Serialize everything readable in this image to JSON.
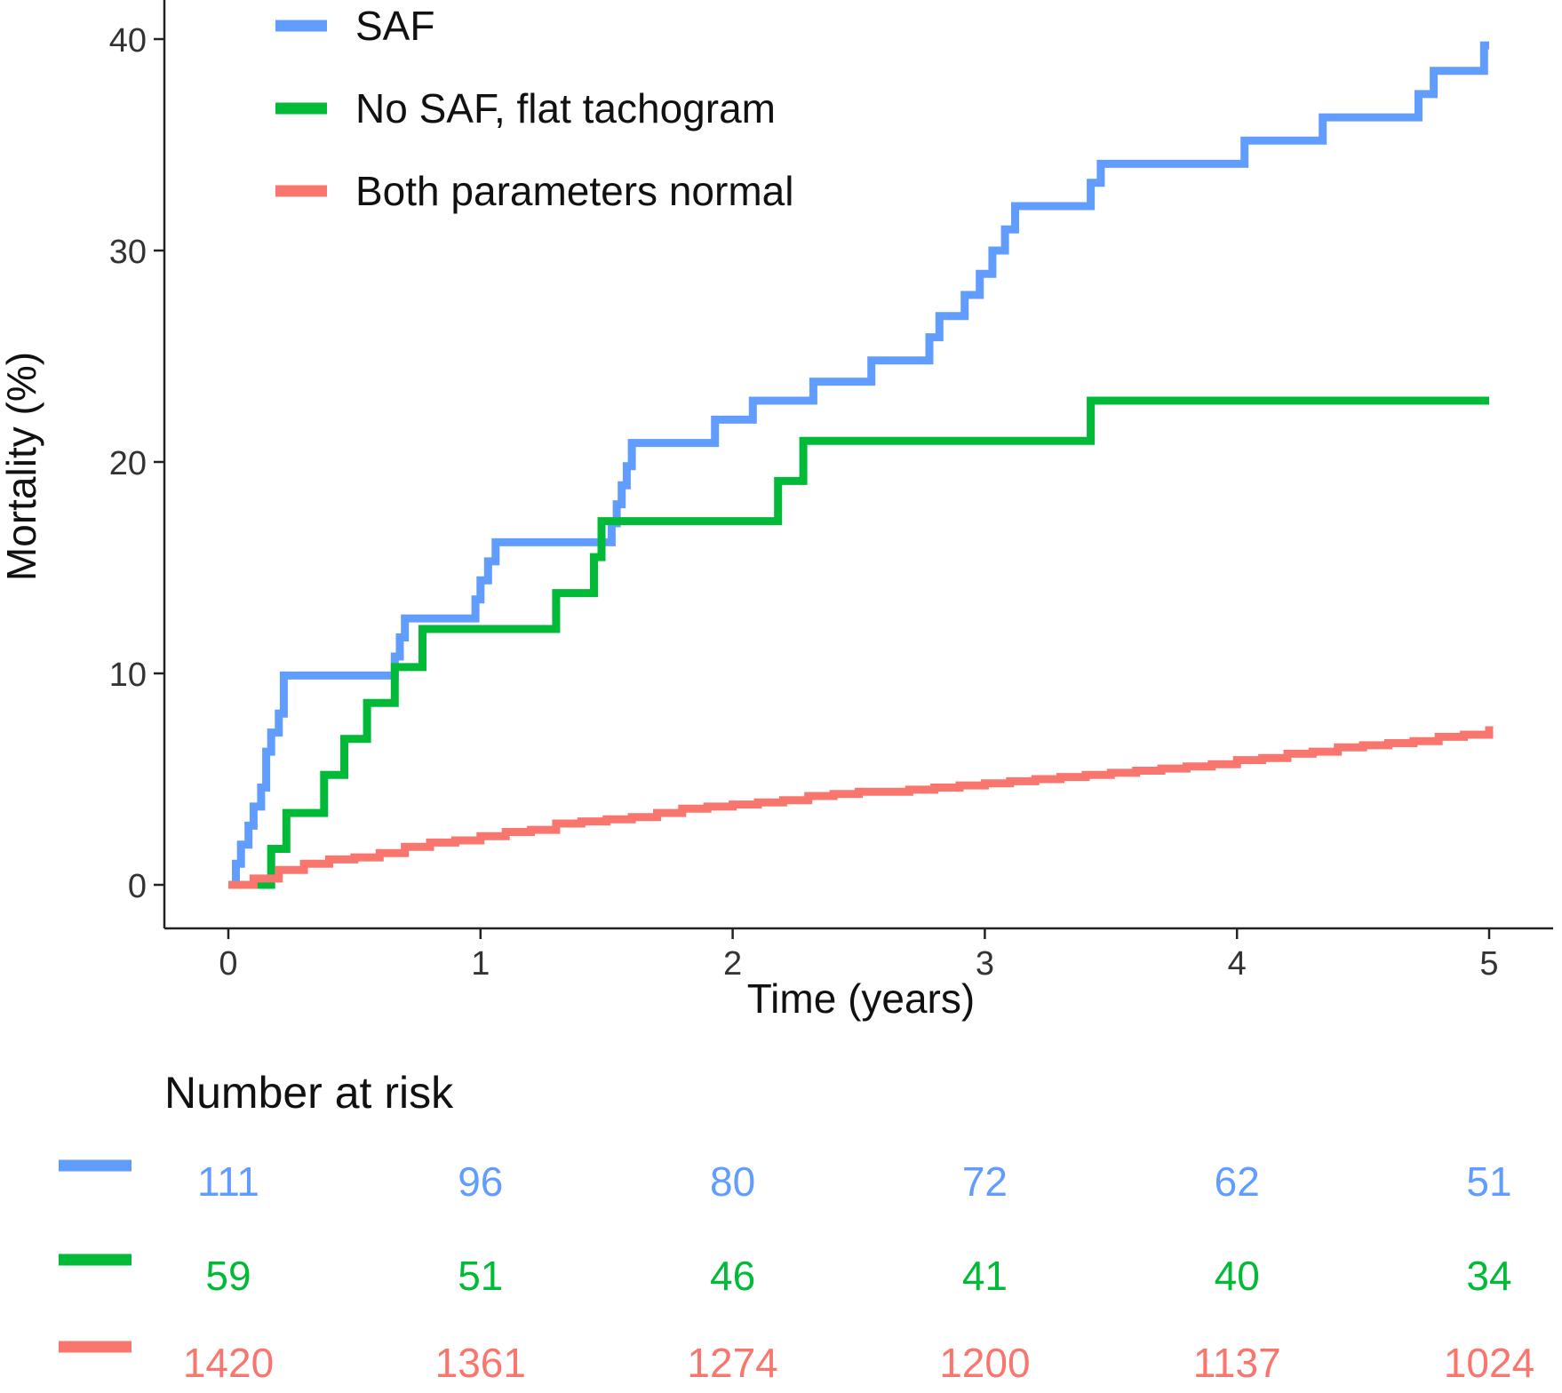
{
  "chart_data": {
    "type": "line",
    "step": true,
    "xlabel": "Time (years)",
    "ylabel": "Mortality (%)",
    "xlim": [
      0,
      5
    ],
    "ylim": [
      0,
      40
    ],
    "xticks": [
      "0",
      "1",
      "2",
      "3",
      "4",
      "5"
    ],
    "yticks": [
      "0",
      "10",
      "20",
      "30",
      "40"
    ],
    "grid": false,
    "legend_position": "top-left",
    "series": [
      {
        "name": "SAF",
        "color": "#619CFF",
        "x": [
          0,
          0.03,
          0.05,
          0.08,
          0.1,
          0.13,
          0.15,
          0.17,
          0.2,
          0.22,
          0.64,
          0.66,
          0.68,
          0.7,
          0.96,
          0.98,
          1.0,
          1.03,
          1.06,
          1.4,
          1.52,
          1.54,
          1.56,
          1.58,
          1.6,
          1.62,
          1.93,
          2.0,
          2.08,
          2.32,
          2.55,
          2.78,
          2.82,
          2.92,
          2.98,
          3.03,
          3.08,
          3.12,
          3.42,
          3.46,
          4.03,
          4.34,
          4.72,
          4.78,
          4.98,
          5.0
        ],
        "y": [
          0,
          1.0,
          1.9,
          2.8,
          3.7,
          4.6,
          6.3,
          7.2,
          8.1,
          9.9,
          9.9,
          10.8,
          11.7,
          12.6,
          12.6,
          13.5,
          14.4,
          15.3,
          16.2,
          16.2,
          17.1,
          18.0,
          18.9,
          19.8,
          20.9,
          20.9,
          22.0,
          22.0,
          22.9,
          23.8,
          24.8,
          25.9,
          26.9,
          27.9,
          28.9,
          30.0,
          31.0,
          32.1,
          33.2,
          34.1,
          35.2,
          36.3,
          37.4,
          38.5,
          39.7,
          39.7
        ]
      },
      {
        "name": "No SAF, flat tachogram",
        "color": "#00BA38",
        "x": [
          0,
          0.17,
          0.23,
          0.38,
          0.46,
          0.55,
          0.66,
          0.77,
          1.3,
          1.45,
          1.48,
          2.18,
          2.28,
          3.42,
          5.0
        ],
        "y": [
          0,
          1.7,
          3.4,
          5.2,
          6.9,
          8.6,
          10.3,
          12.1,
          13.8,
          15.5,
          17.2,
          19.1,
          21.0,
          22.9,
          22.9
        ]
      },
      {
        "name": "Both parameters normal",
        "color": "#F8766D",
        "x": [
          0,
          0.1,
          0.2,
          0.3,
          0.4,
          0.5,
          0.6,
          0.7,
          0.8,
          0.9,
          1.0,
          1.1,
          1.2,
          1.3,
          1.4,
          1.5,
          1.6,
          1.7,
          1.8,
          1.9,
          2.0,
          2.1,
          2.2,
          2.3,
          2.4,
          2.5,
          2.6,
          2.7,
          2.8,
          2.9,
          3.0,
          3.1,
          3.2,
          3.3,
          3.4,
          3.5,
          3.6,
          3.7,
          3.8,
          3.9,
          4.0,
          4.1,
          4.2,
          4.3,
          4.4,
          4.5,
          4.6,
          4.7,
          4.8,
          4.9,
          5.0
        ],
        "y": [
          0,
          0.3,
          0.7,
          1.0,
          1.2,
          1.3,
          1.5,
          1.8,
          2.0,
          2.1,
          2.3,
          2.5,
          2.6,
          2.9,
          3.0,
          3.1,
          3.2,
          3.4,
          3.6,
          3.7,
          3.8,
          3.9,
          4.0,
          4.2,
          4.3,
          4.4,
          4.4,
          4.5,
          4.6,
          4.7,
          4.8,
          4.9,
          5.0,
          5.1,
          5.2,
          5.3,
          5.4,
          5.5,
          5.6,
          5.7,
          5.9,
          6.0,
          6.2,
          6.3,
          6.5,
          6.6,
          6.7,
          6.8,
          7.0,
          7.1,
          7.5
        ]
      }
    ],
    "risk_table": {
      "title": "Number at risk",
      "times": [
        0,
        1,
        2,
        3,
        4,
        5
      ],
      "rows": [
        {
          "name": "SAF",
          "color": "#619CFF",
          "values": [
            "111",
            "96",
            "80",
            "72",
            "62",
            "51"
          ]
        },
        {
          "name": "No SAF, flat tachogram",
          "color": "#00BA38",
          "values": [
            "59",
            "51",
            "46",
            "41",
            "40",
            "34"
          ]
        },
        {
          "name": "Both parameters normal",
          "color": "#F8766D",
          "values": [
            "1420",
            "1361",
            "1274",
            "1200",
            "1137",
            "1024"
          ]
        }
      ]
    }
  }
}
